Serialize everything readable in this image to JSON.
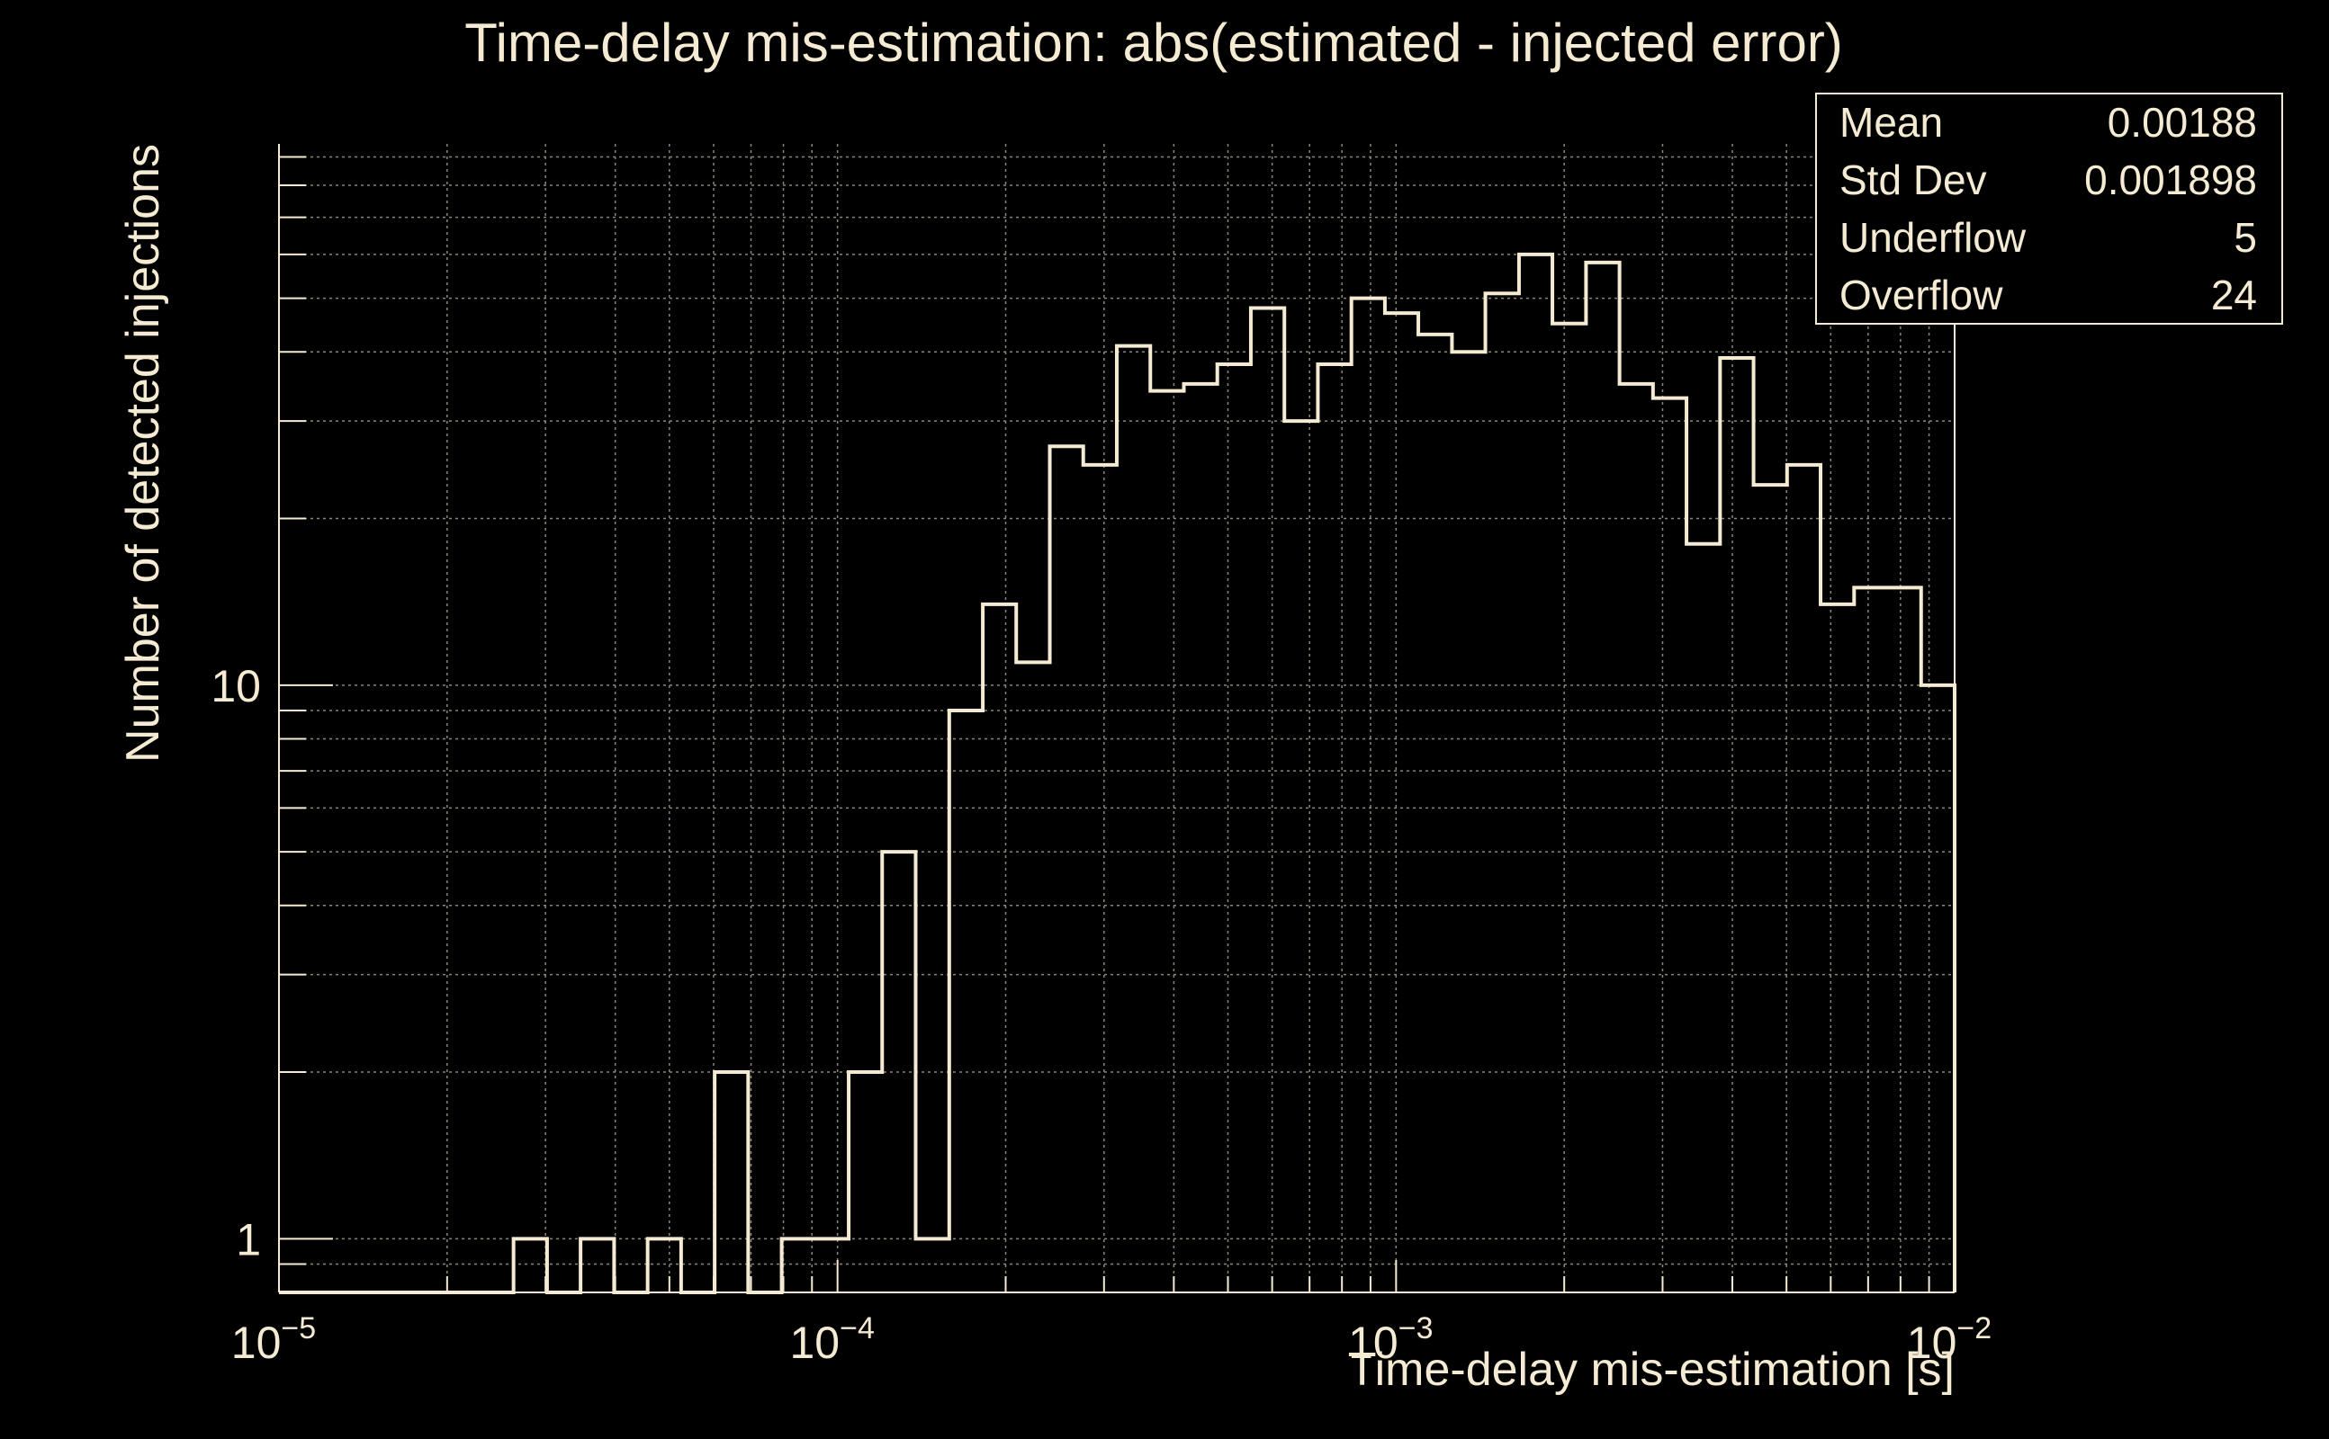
{
  "colors": {
    "background": "#000000",
    "foreground": "#f5ead2",
    "grid": "#8c8678"
  },
  "stats_box": {
    "rows": [
      {
        "label": "Mean",
        "value": "0.00188"
      },
      {
        "label": "Std Dev",
        "value": "0.001898"
      },
      {
        "label": "Underflow",
        "value": "5"
      },
      {
        "label": "Overflow",
        "value": "24"
      }
    ]
  },
  "chart_data": {
    "type": "histogram",
    "title": "Time-delay mis-estimation: abs(estimated - injected error)",
    "xlabel": "Time-delay mis-estimation [s]",
    "ylabel": "Number of detected injections",
    "x_scale": "log",
    "y_scale": "log",
    "xlim": [
      1e-05,
      0.01
    ],
    "ylim": [
      0.8,
      95
    ],
    "x_ticks": [
      {
        "value": 1e-05,
        "base": "10",
        "exp": "−5"
      },
      {
        "value": 0.0001,
        "base": "10",
        "exp": "−4"
      },
      {
        "value": 0.001,
        "base": "10",
        "exp": "−3"
      },
      {
        "value": 0.01,
        "base": "10",
        "exp": "−2"
      }
    ],
    "y_ticks": [
      {
        "value": 1,
        "label": "1"
      },
      {
        "value": 10,
        "label": "10"
      }
    ],
    "grid": true,
    "bin_edges": [
      1e-05,
      1.148e-05,
      1.318e-05,
      1.514e-05,
      1.738e-05,
      1.995e-05,
      2.291e-05,
      2.63e-05,
      3.02e-05,
      3.467e-05,
      3.981e-05,
      4.571e-05,
      5.248e-05,
      6.026e-05,
      6.918e-05,
      7.943e-05,
      9.12e-05,
      0.0001047,
      0.0001202,
      0.000138,
      0.0001585,
      0.000182,
      0.0002089,
      0.0002399,
      0.0002754,
      0.0003162,
      0.0003631,
      0.0004169,
      0.0004786,
      0.0005495,
      0.000631,
      0.0007244,
      0.0008318,
      0.000955,
      0.001096,
      0.001259,
      0.001445,
      0.00166,
      0.001905,
      0.002188,
      0.002512,
      0.002884,
      0.003311,
      0.003802,
      0.004365,
      0.005012,
      0.005754,
      0.006607,
      0.007586,
      0.00871,
      0.01
    ],
    "counts": [
      0,
      0,
      0,
      0,
      0,
      0,
      0,
      1,
      0,
      1,
      0,
      1,
      0,
      2,
      0,
      1,
      1,
      2,
      5,
      1,
      9,
      14,
      11,
      27,
      25,
      41,
      34,
      35,
      38,
      48,
      30,
      38,
      50,
      47,
      43,
      40,
      51,
      60,
      45,
      58,
      35,
      33,
      18,
      39,
      23,
      25,
      14,
      15,
      15,
      10
    ]
  }
}
